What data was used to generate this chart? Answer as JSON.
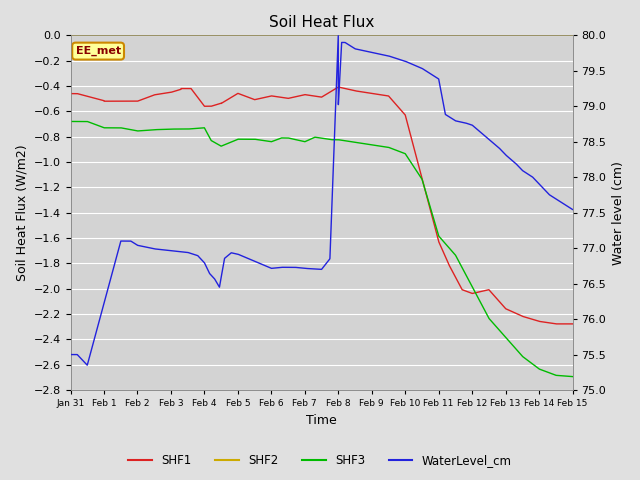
{
  "title": "Soil Heat Flux",
  "xlabel": "Time",
  "ylabel_left": "Soil Heat Flux (W/m2)",
  "ylabel_right": "Water level (cm)",
  "ylim_left": [
    -2.8,
    0.0
  ],
  "ylim_right": [
    75.0,
    80.0
  ],
  "yticks_left": [
    0.0,
    -0.2,
    -0.4,
    -0.6,
    -0.8,
    -1.0,
    -1.2,
    -1.4,
    -1.6,
    -1.8,
    -2.0,
    -2.2,
    -2.4,
    -2.6,
    -2.8
  ],
  "yticks_right": [
    75.0,
    75.5,
    76.0,
    76.5,
    77.0,
    77.5,
    78.0,
    78.5,
    79.0,
    79.5,
    80.0
  ],
  "background_color": "#e0e0e0",
  "plot_bg_color": "#d3d3d3",
  "grid_color": "#ffffff",
  "annotation_text": "EE_met",
  "annotation_box_color": "#ffff99",
  "annotation_box_edge": "#cc8800",
  "legend_labels": [
    "SHF1",
    "SHF2",
    "SHF3",
    "WaterLevel_cm"
  ],
  "legend_colors": [
    "#dd2222",
    "#ccaa00",
    "#00bb00",
    "#2222dd"
  ],
  "colors": {
    "SHF1": "#dd2222",
    "SHF2": "#ccaa00",
    "SHF3": "#00bb00",
    "WaterLevel": "#2222dd"
  },
  "x_ticks_labels": [
    "Jan 31",
    "Feb 1",
    "Feb 2",
    "Feb 3",
    "Feb 4",
    "Feb 5",
    "Feb 6",
    "Feb 7",
    "Feb 8",
    "Feb 9",
    "Feb 10",
    "Feb 11",
    "Feb 12",
    "Feb 13",
    "Feb 14",
    "Feb 15"
  ],
  "x_ticks_values": [
    0,
    1,
    2,
    3,
    4,
    5,
    6,
    7,
    8,
    9,
    10,
    11,
    12,
    13,
    14,
    15
  ]
}
